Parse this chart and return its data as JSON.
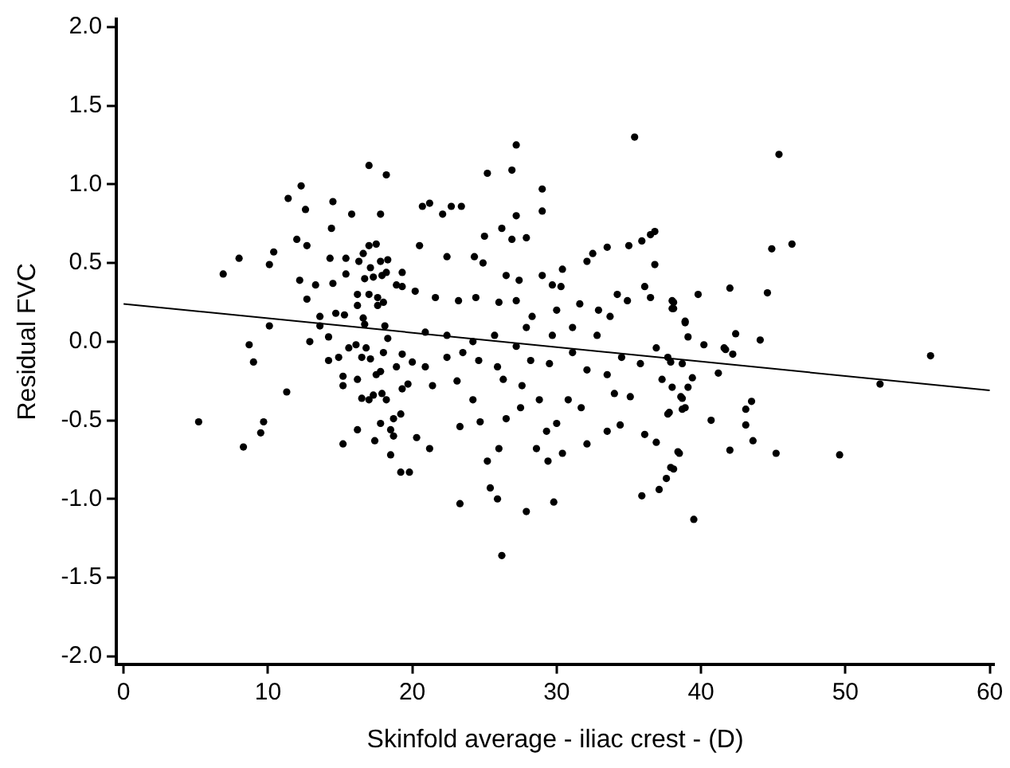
{
  "chart_data": {
    "type": "scatter",
    "xlabel": "Skinfold average - iliac crest - (D)",
    "ylabel": "Residual FVC",
    "xlim": [
      -0.5,
      60.3
    ],
    "ylim": [
      -2.05,
      2.05
    ],
    "xticks": [
      0,
      10,
      20,
      30,
      40,
      50,
      60
    ],
    "yticks": [
      {
        "value": -2,
        "label": "-2.0"
      },
      {
        "value": -1.5,
        "label": "-1.5"
      },
      {
        "value": -1,
        "label": "-1.0"
      },
      {
        "value": -0.5,
        "label": "-0.5"
      },
      {
        "value": 0,
        "label": "0.0"
      },
      {
        "value": 0.5,
        "label": "0.5"
      },
      {
        "value": 1,
        "label": "1.0"
      },
      {
        "value": 1.5,
        "label": "1.5"
      },
      {
        "value": 2,
        "label": "2.0"
      }
    ],
    "grid": false,
    "legend": false,
    "marker": "circle",
    "series": [
      {
        "color": "#000000",
        "x": [
          5.2,
          6.9,
          8.0,
          8.3,
          8.7,
          9.0,
          9.5,
          9.7,
          10.1,
          10.1,
          10.4,
          11.3,
          11.4,
          12.0,
          12.3,
          12.2,
          12.6,
          12.7,
          12.7,
          12.9,
          13.3,
          13.6,
          13.6,
          14.2,
          14.2,
          14.4,
          14.5,
          14.5,
          14.3,
          14.7,
          14.9,
          15.2,
          15.2,
          15.2,
          15.3,
          15.4,
          15.4,
          15.6,
          15.8,
          16.1,
          16.2,
          16.2,
          16.2,
          16.2,
          16.3,
          16.5,
          16.5,
          16.6,
          16.6,
          16.7,
          16.7,
          16.8,
          17.0,
          17.0,
          17.0,
          17.0,
          17.1,
          17.1,
          17.3,
          17.3,
          17.4,
          17.5,
          17.5,
          17.6,
          17.6,
          17.8,
          17.8,
          17.8,
          17.8,
          17.9,
          17.9,
          18.0,
          18.0,
          18.1,
          18.2,
          18.2,
          18.2,
          18.3,
          18.3,
          18.5,
          18.5,
          18.7,
          18.7,
          18.9,
          18.9,
          19.2,
          19.3,
          19.3,
          27.2,
          35.4,
          25.2,
          26.9,
          29.0,
          29.0,
          27.2,
          20.7,
          21.2,
          22.1,
          22.7,
          23.4,
          25.0,
          26.2,
          26.9,
          27.9,
          32.5,
          33.5,
          35.0,
          35.9,
          36.5,
          36.8,
          36.8,
          32.1,
          30.4,
          20.5,
          22.4,
          24.3,
          24.9,
          26.5,
          27.4,
          29.0,
          29.7,
          30.3,
          19.3,
          20.2,
          21.6,
          23.2,
          24.4,
          26.0,
          27.2,
          28.3,
          30.0,
          31.6,
          32.9,
          34.2,
          34.9,
          36.1,
          36.5,
          38.0,
          38.1,
          38.9,
          33.7,
          32.8,
          31.1,
          29.7,
          27.9,
          25.7,
          24.2,
          22.4,
          20.9,
          19.3,
          20.0,
          20.9,
          22.4,
          23.5,
          24.6,
          25.9,
          27.2,
          28.2,
          29.5,
          31.1,
          32.1,
          33.5,
          34.5,
          35.8,
          36.9,
          37.3,
          37.7,
          38.7,
          19.7,
          21.4,
          23.1,
          24.2,
          26.3,
          27.6,
          28.8,
          30.8,
          31.7,
          34.0,
          35.1,
          38.7,
          19.2,
          20.3,
          21.2,
          23.3,
          24.7,
          26.0,
          26.5,
          27.5,
          28.6,
          29.3,
          30.0,
          30.4,
          32.1,
          33.5,
          34.4,
          36.1,
          36.9,
          37.8,
          38.5,
          38.9,
          19.8,
          25.2,
          29.4,
          25.4,
          25.9,
          29.8,
          23.3,
          27.9,
          26.2,
          35.9,
          37.1,
          37.6,
          38.1,
          45.4,
          44.9,
          46.3,
          39.8,
          42.0,
          44.6,
          38.1,
          38.0,
          38.9,
          39.1,
          42.4,
          40.2,
          41.6,
          41.7,
          42.2,
          44.1,
          55.9,
          52.4,
          37.9,
          41.2,
          39.4,
          39.1,
          38.0,
          38.6,
          38.7,
          37.7,
          43.5,
          43.1,
          40.7,
          43.1,
          43.6,
          38.4,
          42.0,
          45.2,
          49.6,
          37.9,
          39.5
        ],
        "values": [
          -0.51,
          0.43,
          0.53,
          -0.67,
          -0.02,
          -0.13,
          -0.58,
          -0.51,
          0.1,
          0.49,
          0.57,
          -0.32,
          0.91,
          0.65,
          0.99,
          0.39,
          0.84,
          0.61,
          0.27,
          0.0,
          0.36,
          0.16,
          0.1,
          0.03,
          -0.12,
          0.72,
          0.89,
          0.37,
          0.53,
          0.18,
          -0.1,
          -0.22,
          -0.28,
          -0.65,
          0.17,
          0.53,
          0.43,
          -0.04,
          0.81,
          -0.02,
          0.23,
          0.3,
          -0.24,
          -0.56,
          0.51,
          -0.1,
          -0.36,
          0.15,
          0.56,
          0.4,
          0.11,
          -0.04,
          1.12,
          0.3,
          0.61,
          -0.37,
          -0.11,
          0.47,
          0.41,
          -0.34,
          -0.63,
          0.62,
          -0.21,
          0.23,
          0.28,
          0.51,
          -0.19,
          -0.52,
          0.81,
          0.42,
          -0.33,
          0.25,
          -0.07,
          0.1,
          1.06,
          0.44,
          -0.37,
          0.02,
          0.52,
          -0.72,
          -0.56,
          -0.49,
          -0.6,
          0.36,
          -0.16,
          -0.83,
          -0.3,
          0.44,
          1.25,
          1.3,
          1.07,
          1.09,
          0.97,
          0.83,
          0.8,
          0.86,
          0.88,
          0.81,
          0.86,
          0.86,
          0.67,
          0.72,
          0.65,
          0.66,
          0.56,
          0.6,
          0.61,
          0.64,
          0.68,
          0.7,
          0.49,
          0.51,
          0.46,
          0.61,
          0.54,
          0.54,
          0.5,
          0.42,
          0.39,
          0.42,
          0.36,
          0.35,
          0.35,
          0.32,
          0.28,
          0.26,
          0.28,
          0.25,
          0.26,
          0.16,
          0.2,
          0.24,
          0.2,
          0.3,
          0.26,
          0.35,
          0.28,
          0.26,
          0.21,
          0.13,
          0.16,
          0.04,
          0.09,
          0.04,
          0.09,
          0.04,
          0.0,
          0.04,
          0.06,
          -0.08,
          -0.13,
          -0.16,
          -0.1,
          -0.07,
          -0.12,
          -0.16,
          -0.03,
          -0.12,
          -0.14,
          -0.07,
          -0.18,
          -0.21,
          -0.1,
          -0.14,
          -0.04,
          -0.24,
          -0.1,
          -0.14,
          -0.27,
          -0.28,
          -0.25,
          -0.37,
          -0.24,
          -0.28,
          -0.37,
          -0.37,
          -0.42,
          -0.33,
          -0.35,
          -0.36,
          -0.46,
          -0.61,
          -0.68,
          -0.54,
          -0.51,
          -0.68,
          -0.49,
          -0.42,
          -0.68,
          -0.57,
          -0.52,
          -0.71,
          -0.65,
          -0.57,
          -0.53,
          -0.59,
          -0.64,
          -0.45,
          -0.71,
          -0.42,
          -0.83,
          -0.76,
          -0.76,
          -0.93,
          -1.0,
          -1.02,
          -1.03,
          -1.08,
          -1.36,
          -0.98,
          -0.94,
          -0.87,
          -0.81,
          1.19,
          0.59,
          0.62,
          0.3,
          0.34,
          0.31,
          0.25,
          0.21,
          0.12,
          0.03,
          0.05,
          -0.02,
          -0.04,
          -0.05,
          -0.08,
          0.01,
          -0.09,
          -0.27,
          -0.13,
          -0.2,
          -0.23,
          -0.29,
          -0.29,
          -0.35,
          -0.43,
          -0.46,
          -0.38,
          -0.43,
          -0.5,
          -0.53,
          -0.63,
          -0.7,
          -0.69,
          -0.71,
          -0.72,
          -0.8,
          -1.13
        ]
      },
      {
        "type": "line",
        "color": "#000000",
        "marker": "none",
        "x": [
          0,
          60
        ],
        "values": [
          0.24,
          -0.31
        ]
      }
    ]
  }
}
